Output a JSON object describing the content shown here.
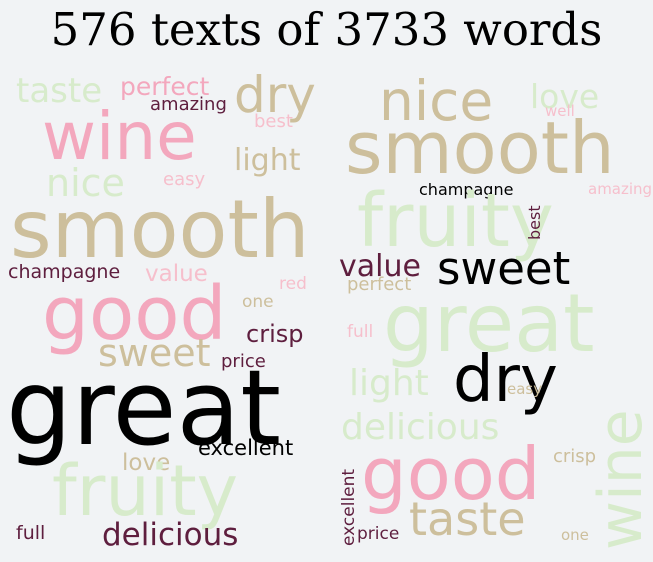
{
  "title": "576 texts of 3733 words",
  "left_cloud": {
    "taste": "taste",
    "perfect": "perfect",
    "dry": "dry",
    "amazing": "amazing",
    "wine": "wine",
    "best": "best",
    "nice": "nice",
    "light": "light",
    "easy": "easy",
    "smooth": "smooth",
    "champagne": "champagne",
    "value": "value",
    "red": "red",
    "good": "good",
    "one": "one",
    "crisp": "crisp",
    "sweet": "sweet",
    "price": "price",
    "great": "great",
    "excellent": "excellent",
    "love": "love",
    "fruity": "fruity",
    "full": "full",
    "delicious": "delicious"
  },
  "right_cloud": {
    "nice": "nice",
    "love": "love",
    "well": "well",
    "smooth": "smooth",
    "champagne": "champagne",
    "amazing": "amazing",
    "fruity": "fruity",
    "best": "best",
    "value": "value",
    "sweet": "sweet",
    "perfect": "perfect",
    "great": "great",
    "full": "full",
    "dry": "dry",
    "light": "light",
    "easy": "easy",
    "wine": "wine",
    "delicious": "delicious",
    "good": "good",
    "crisp": "crisp",
    "excellent": "excellent",
    "taste": "taste",
    "price": "price",
    "one": "one"
  }
}
